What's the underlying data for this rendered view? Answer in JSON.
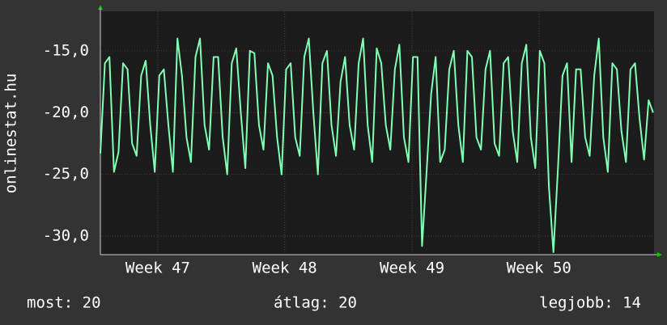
{
  "chart_data": {
    "type": "line",
    "y_label": "onlinestat.hu",
    "x": [
      0,
      0.25,
      0.5,
      0.75,
      1,
      1.25,
      1.5,
      1.75,
      2,
      2.25,
      2.5,
      2.75,
      3,
      3.25,
      3.5,
      3.75,
      4,
      4.25,
      4.5,
      4.75,
      5,
      5.25,
      5.5,
      5.75,
      6,
      6.25,
      6.5,
      6.75,
      7,
      7.25,
      7.5,
      7.75,
      8,
      8.25,
      8.5,
      8.75,
      9,
      9.25,
      9.5,
      9.75,
      10,
      10.25,
      10.5,
      10.75,
      11,
      11.25,
      11.5,
      11.75,
      12,
      12.25,
      12.5,
      12.75,
      13,
      13.25,
      13.5,
      13.75,
      14,
      14.25,
      14.5,
      14.75,
      15,
      15.25,
      15.5,
      15.75,
      16,
      16.25,
      16.5,
      16.75,
      17,
      17.25,
      17.5,
      17.75,
      18,
      18.25,
      18.5,
      18.75,
      19,
      19.25,
      19.5,
      19.75,
      20,
      20.25,
      20.5,
      20.75,
      21,
      21.25,
      21.5,
      21.75,
      22,
      22.25,
      22.5,
      22.75,
      23,
      23.25,
      23.5,
      23.75,
      24,
      24.25,
      24.5,
      24.75,
      25,
      25.25,
      25.5,
      25.75,
      26,
      26.25,
      26.5,
      26.75,
      27,
      27.25,
      27.5,
      27.75,
      28,
      28.25,
      28.5,
      28.75,
      29,
      29.25,
      29.5,
      29.75,
      30,
      30.25,
      30.5
    ],
    "series": [
      {
        "color": "#80ffb4",
        "values": [
          -23.3,
          -16,
          -15.5,
          -24.8,
          -23.2,
          -16,
          -16.5,
          -22.5,
          -23.5,
          -17,
          -15.8,
          -21,
          -24.8,
          -17,
          -16.5,
          -21,
          -24.8,
          -14,
          -17,
          -22,
          -24,
          -15.5,
          -14,
          -21,
          -23,
          -15.5,
          -15.5,
          -22,
          -25,
          -16,
          -14.8,
          -20,
          -24.5,
          -15,
          -15.2,
          -21,
          -23,
          -16,
          -17,
          -22,
          -25,
          -16.5,
          -16,
          -22,
          -23.5,
          -15.5,
          -14,
          -20,
          -25,
          -16,
          -15,
          -21,
          -23.5,
          -17.5,
          -15.5,
          -21,
          -23,
          -16,
          -14,
          -21,
          -24,
          -14.8,
          -16,
          -21,
          -23,
          -16.5,
          -14.5,
          -22,
          -24,
          -15.5,
          -15.5,
          -30.8,
          -24.8,
          -18.5,
          -15.5,
          -24,
          -23,
          -16.5,
          -15,
          -21,
          -24,
          -15,
          -15.5,
          -22,
          -23,
          -16.5,
          -15,
          -22.5,
          -23.5,
          -16,
          -15.5,
          -21.5,
          -24,
          -16,
          -14.5,
          -22,
          -24.5,
          -15,
          -16,
          -26,
          -31.3,
          -24.5,
          -17,
          -16,
          -24,
          -16.5,
          -16.5,
          -22,
          -23.5,
          -17,
          -14,
          -22,
          -24.8,
          -16,
          -16.5,
          -21.5,
          -24,
          -16.5,
          -16,
          -20.5,
          -23.8,
          -19,
          -20
        ]
      }
    ],
    "xlim": [
      0,
      30.55
    ],
    "xticks": [
      {
        "value": 3.17,
        "label": "Week 47"
      },
      {
        "value": 10.17,
        "label": "Week 48"
      },
      {
        "value": 17.2,
        "label": "Week 49"
      },
      {
        "value": 24.2,
        "label": "Week 50"
      }
    ],
    "ylim": [
      -31.5,
      -11.8
    ],
    "yticks": [
      {
        "value": -15,
        "label": "-15,0"
      },
      {
        "value": -20,
        "label": "-20,0"
      },
      {
        "value": -25,
        "label": "-25,0"
      },
      {
        "value": -30,
        "label": "-30,0"
      }
    ],
    "grid": true,
    "footer": {
      "current": "most: 20",
      "average": "átlag: 20",
      "best": "legjobb: 14"
    }
  }
}
